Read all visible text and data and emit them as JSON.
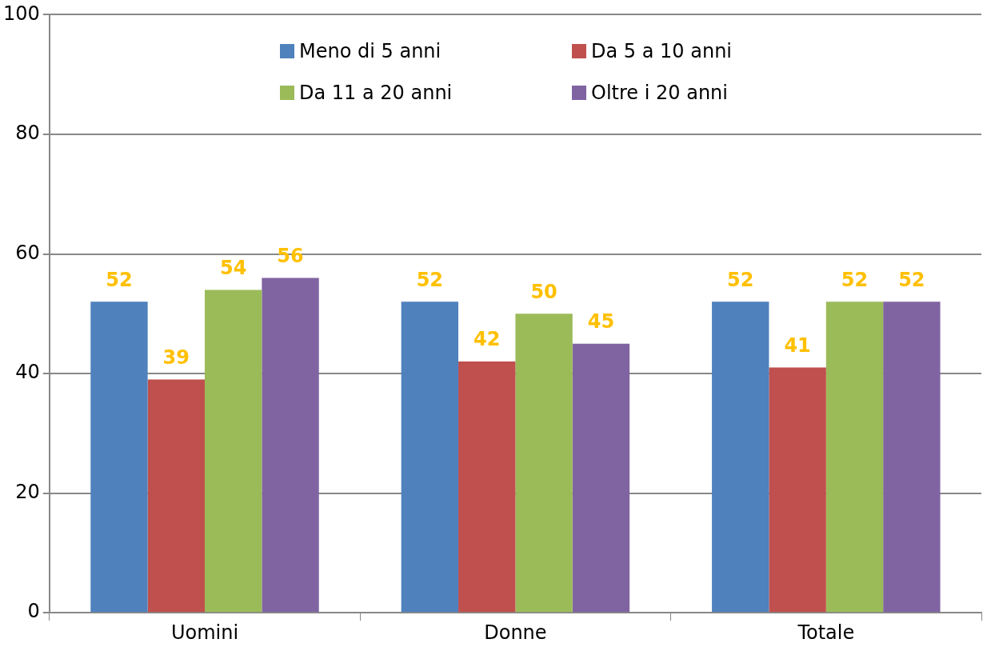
{
  "chart_data": {
    "type": "bar",
    "categories": [
      "Uomini",
      "Donne",
      "Totale"
    ],
    "series": [
      {
        "name": "Meno di 5 anni",
        "color": "#4f81bd",
        "values": [
          52,
          52,
          52
        ]
      },
      {
        "name": "Da 5 a 10 anni",
        "color": "#c0504d",
        "values": [
          39,
          42,
          41
        ]
      },
      {
        "name": "Da 11 a 20 anni",
        "color": "#9bbb59",
        "values": [
          54,
          50,
          52
        ]
      },
      {
        "name": "Oltre i 20 anni",
        "color": "#8064a2",
        "values": [
          56,
          45,
          52
        ]
      }
    ],
    "ylim": [
      0,
      100
    ],
    "yticks": [
      0,
      20,
      40,
      60,
      80,
      100
    ],
    "grid": "y",
    "legend": "top",
    "data_labels": true
  }
}
